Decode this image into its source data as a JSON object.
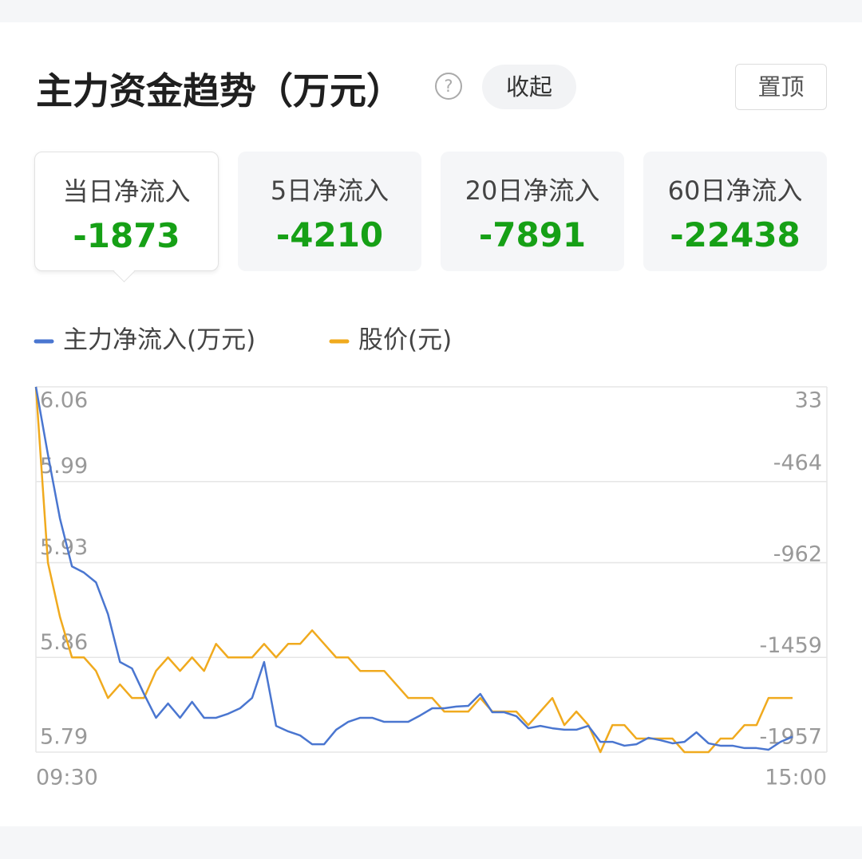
{
  "header": {
    "title": "主力资金趋势（万元）",
    "help": "?",
    "collapse": "收起",
    "pin": "置顶"
  },
  "tabs": [
    {
      "label": "当日净流入",
      "value": -1873
    },
    {
      "label": "5日净流入",
      "value": -4210
    },
    {
      "label": "20日净流入",
      "value": -7891
    },
    {
      "label": "60日净流入",
      "value": -22438
    }
  ],
  "chart_data": {
    "type": "line",
    "categories": [
      "09:30",
      null,
      null,
      null,
      null,
      null,
      null,
      null,
      null,
      null,
      null,
      null,
      null,
      null,
      null,
      null,
      null,
      null,
      null,
      null,
      null,
      null,
      null,
      null,
      null,
      null,
      null,
      null,
      null,
      null,
      null,
      null,
      null,
      null,
      null,
      null,
      null,
      null,
      null,
      null,
      null,
      null,
      null,
      null,
      null,
      null,
      null,
      null,
      null,
      null,
      null,
      null,
      null,
      null,
      null,
      null,
      null,
      null,
      null,
      null,
      null,
      null,
      null,
      "15:00"
    ],
    "series": [
      {
        "name": "主力净流入(万元)",
        "color": "#4a76d0",
        "axis": "y2",
        "values": [
          33,
          -336,
          -684,
          -945,
          -979,
          -1032,
          -1205,
          -1466,
          -1501,
          -1640,
          -1770,
          -1692,
          -1770,
          -1683,
          -1770,
          -1770,
          -1748,
          -1718,
          -1662,
          -1466,
          -1814,
          -1844,
          -1866,
          -1914,
          -1914,
          -1835,
          -1792,
          -1770,
          -1770,
          -1792,
          -1792,
          -1792,
          -1757,
          -1718,
          -1718,
          -1709,
          -1705,
          -1640,
          -1740,
          -1740,
          -1761,
          -1827,
          -1814,
          -1827,
          -1835,
          -1835,
          -1814,
          -1901,
          -1901,
          -1922,
          -1914,
          -1879,
          -1892,
          -1909,
          -1901,
          -1849,
          -1909,
          -1922,
          -1922,
          -1935,
          -1935,
          -1944,
          -1901,
          -1873
        ]
      },
      {
        "name": "股价(元)",
        "color": "#f0aa1e",
        "values": [
          6.06,
          5.93,
          5.89,
          5.86,
          5.86,
          5.85,
          5.83,
          5.84,
          5.83,
          5.83,
          5.85,
          5.86,
          5.85,
          5.86,
          5.85,
          5.87,
          5.86,
          5.86,
          5.86,
          5.87,
          5.86,
          5.87,
          5.87,
          5.88,
          5.87,
          5.86,
          5.86,
          5.85,
          5.85,
          5.85,
          5.84,
          5.83,
          5.83,
          5.83,
          5.82,
          5.82,
          5.82,
          5.83,
          5.82,
          5.82,
          5.82,
          5.81,
          5.82,
          5.83,
          5.81,
          5.82,
          5.81,
          5.79,
          5.81,
          5.81,
          5.8,
          5.8,
          5.8,
          5.8,
          5.79,
          5.79,
          5.79,
          5.8,
          5.8,
          5.81,
          5.81,
          5.83,
          5.83,
          5.83
        ]
      }
    ],
    "ylim": [
      5.79,
      6.06
    ],
    "yticks": [
      6.06,
      5.99,
      5.93,
      5.86,
      5.79
    ],
    "y2lim": [
      -1957,
      33
    ],
    "y2ticks": [
      33,
      -464,
      -962,
      -1459,
      -1957
    ],
    "grid": true,
    "legend": "top-left"
  }
}
